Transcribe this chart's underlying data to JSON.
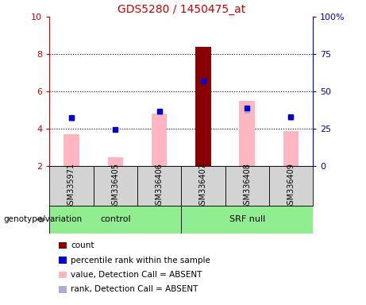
{
  "title": "GDS5280 / 1450475_at",
  "samples": [
    "GSM335971",
    "GSM336405",
    "GSM336406",
    "GSM336407",
    "GSM336408",
    "GSM336409"
  ],
  "ylim_left": [
    2,
    10
  ],
  "ylim_right": [
    0,
    100
  ],
  "yticks_left": [
    2,
    4,
    6,
    8,
    10
  ],
  "yticks_right": [
    0,
    25,
    50,
    75,
    100
  ],
  "yticklabels_right": [
    "0",
    "25",
    "50",
    "75",
    "100%"
  ],
  "pink_bar_bottoms": [
    2,
    2,
    2,
    2,
    2,
    2
  ],
  "pink_bar_tops": [
    3.7,
    2.5,
    4.8,
    8.4,
    5.5,
    3.9
  ],
  "red_bar_tops": [
    0,
    0,
    0,
    8.4,
    0,
    0
  ],
  "blue_square_y": [
    4.6,
    3.95,
    4.95,
    6.55,
    5.1,
    4.65
  ],
  "lavender_square_y": [
    4.55,
    null,
    4.9,
    null,
    5.0,
    4.6
  ],
  "pink_color": "#ffb6c1",
  "red_color": "#8B0000",
  "blue_color": "#0000CD",
  "lavender_color": "#aaaadd",
  "bar_width": 0.35,
  "grid_dotted_at": [
    4,
    6,
    8
  ],
  "legend_items": [
    {
      "label": "count",
      "color": "#8B0000"
    },
    {
      "label": "percentile rank within the sample",
      "color": "#0000CD"
    },
    {
      "label": "value, Detection Call = ABSENT",
      "color": "#ffb6c1"
    },
    {
      "label": "rank, Detection Call = ABSENT",
      "color": "#aaaadd"
    }
  ],
  "genotype_label": "genotype/variation",
  "control_label": "control",
  "srf_label": "SRF null",
  "title_color": "#cc0000",
  "left_axis_color": "#cc0000",
  "right_axis_color": "#0000CD",
  "sample_box_color": "#d3d3d3",
  "group_box_color": "#90ee90"
}
